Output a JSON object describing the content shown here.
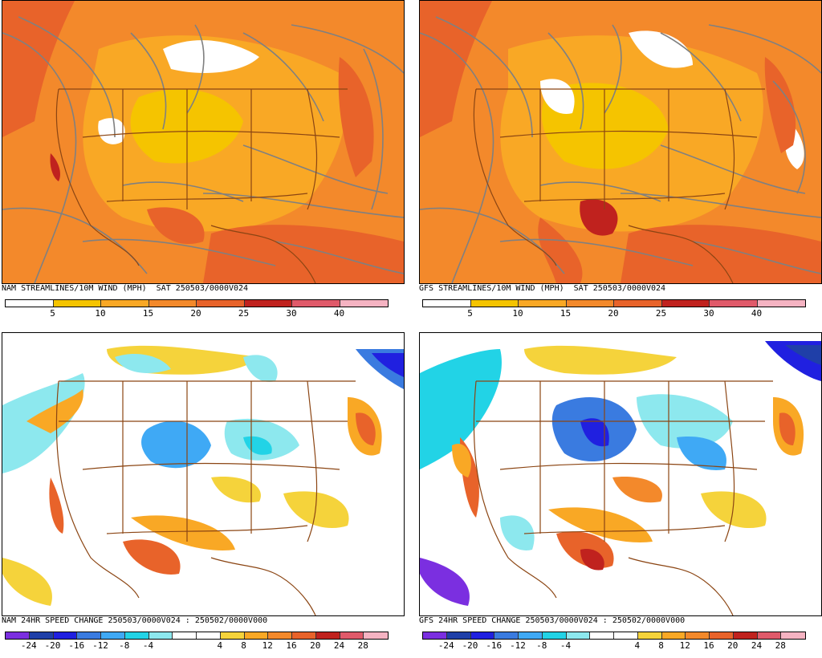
{
  "panels": [
    {
      "id": "nam-streamlines",
      "caption": "NAM STREAMLINES/10M WIND (MPH)  SAT 250503/0000V024",
      "type": "wind",
      "colorbar": {
        "colors": [
          "#ffffff",
          "#f5c400",
          "#f9a825",
          "#f3892b",
          "#e8632a",
          "#c0221e",
          "#e05a6a",
          "#f5b3c2"
        ],
        "ticks": [
          "5",
          "10",
          "15",
          "20",
          "25",
          "30",
          "40"
        ]
      }
    },
    {
      "id": "gfs-streamlines",
      "caption": "GFS STREAMLINES/10M WIND (MPH)  SAT 250503/0000V024",
      "type": "wind",
      "colorbar": {
        "colors": [
          "#ffffff",
          "#f5c400",
          "#f9a825",
          "#f3892b",
          "#e8632a",
          "#c0221e",
          "#e05a6a",
          "#f5b3c2"
        ],
        "ticks": [
          "5",
          "10",
          "15",
          "20",
          "25",
          "30",
          "40"
        ]
      }
    },
    {
      "id": "nam-speed-change",
      "caption": "NAM 24HR SPEED CHANGE 250503/0000V024 : 250502/0000V000",
      "type": "change",
      "colorbar": {
        "colors": [
          "#7b2fe0",
          "#1f3fa8",
          "#2020e0",
          "#3a7be0",
          "#3fa9f5",
          "#22d3e6",
          "#8de8ee",
          "#ffffff",
          "#ffffff",
          "#f5d33b",
          "#f9a825",
          "#f3892b",
          "#e8632a",
          "#c0221e",
          "#e05a6a",
          "#f5b3c2"
        ],
        "ticks": [
          "-24",
          "-20",
          "-16",
          "-12",
          "-8",
          "-4",
          "4",
          "8",
          "12",
          "16",
          "20",
          "24",
          "28"
        ]
      }
    },
    {
      "id": "gfs-speed-change",
      "caption": "GFS 24HR SPEED CHANGE 250503/0000V024 : 250502/0000V000",
      "type": "change",
      "colorbar": {
        "colors": [
          "#7b2fe0",
          "#1f3fa8",
          "#2020e0",
          "#3a7be0",
          "#3fa9f5",
          "#22d3e6",
          "#8de8ee",
          "#ffffff",
          "#ffffff",
          "#f5d33b",
          "#f9a825",
          "#f3892b",
          "#e8632a",
          "#c0221e",
          "#e05a6a",
          "#f5b3c2"
        ],
        "ticks": [
          "-24",
          "-20",
          "-16",
          "-12",
          "-8",
          "-4",
          "4",
          "8",
          "12",
          "16",
          "20",
          "24",
          "28"
        ]
      }
    }
  ]
}
